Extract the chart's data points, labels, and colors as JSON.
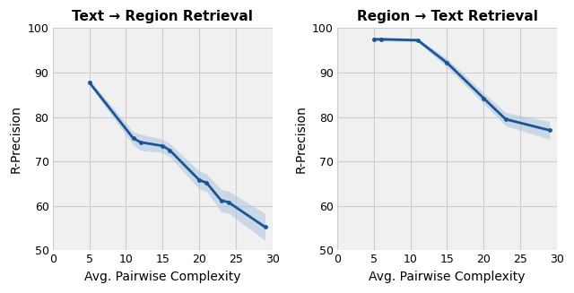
{
  "left_title": "Text → Region Retrieval",
  "right_title": "Region → Text Retrieval",
  "xlabel": "Avg. Pairwise Complexity",
  "ylabel": "R-Precision",
  "xlim": [
    0,
    30
  ],
  "ylim": [
    50,
    100
  ],
  "yticks": [
    50,
    60,
    70,
    80,
    90,
    100
  ],
  "xticks": [
    0,
    5,
    10,
    15,
    20,
    25,
    30
  ],
  "left_x": [
    5,
    11,
    12,
    15,
    16,
    20,
    21,
    23,
    24,
    29
  ],
  "left_y": [
    87.8,
    75.2,
    74.3,
    73.5,
    72.5,
    65.8,
    65.2,
    61.2,
    60.8,
    55.2
  ],
  "left_yerr": [
    0.6,
    1.5,
    1.8,
    1.5,
    1.5,
    2.0,
    2.0,
    2.5,
    2.5,
    3.0
  ],
  "right_x": [
    5,
    6,
    11,
    15,
    20,
    23,
    29
  ],
  "right_y": [
    97.5,
    97.5,
    97.3,
    92.2,
    84.2,
    79.5,
    77.0
  ],
  "right_yerr": [
    0.4,
    0.4,
    0.4,
    1.0,
    1.2,
    1.5,
    2.0
  ],
  "line_color": "#1a5596",
  "band_color": "#aac4de",
  "marker_size": 3.5,
  "line_width": 2.0,
  "grid_color": "#cccccc",
  "bg_color": "#f0f0f0",
  "fig_bg": "#ffffff",
  "title_fontsize": 11,
  "label_fontsize": 10,
  "tick_fontsize": 9
}
